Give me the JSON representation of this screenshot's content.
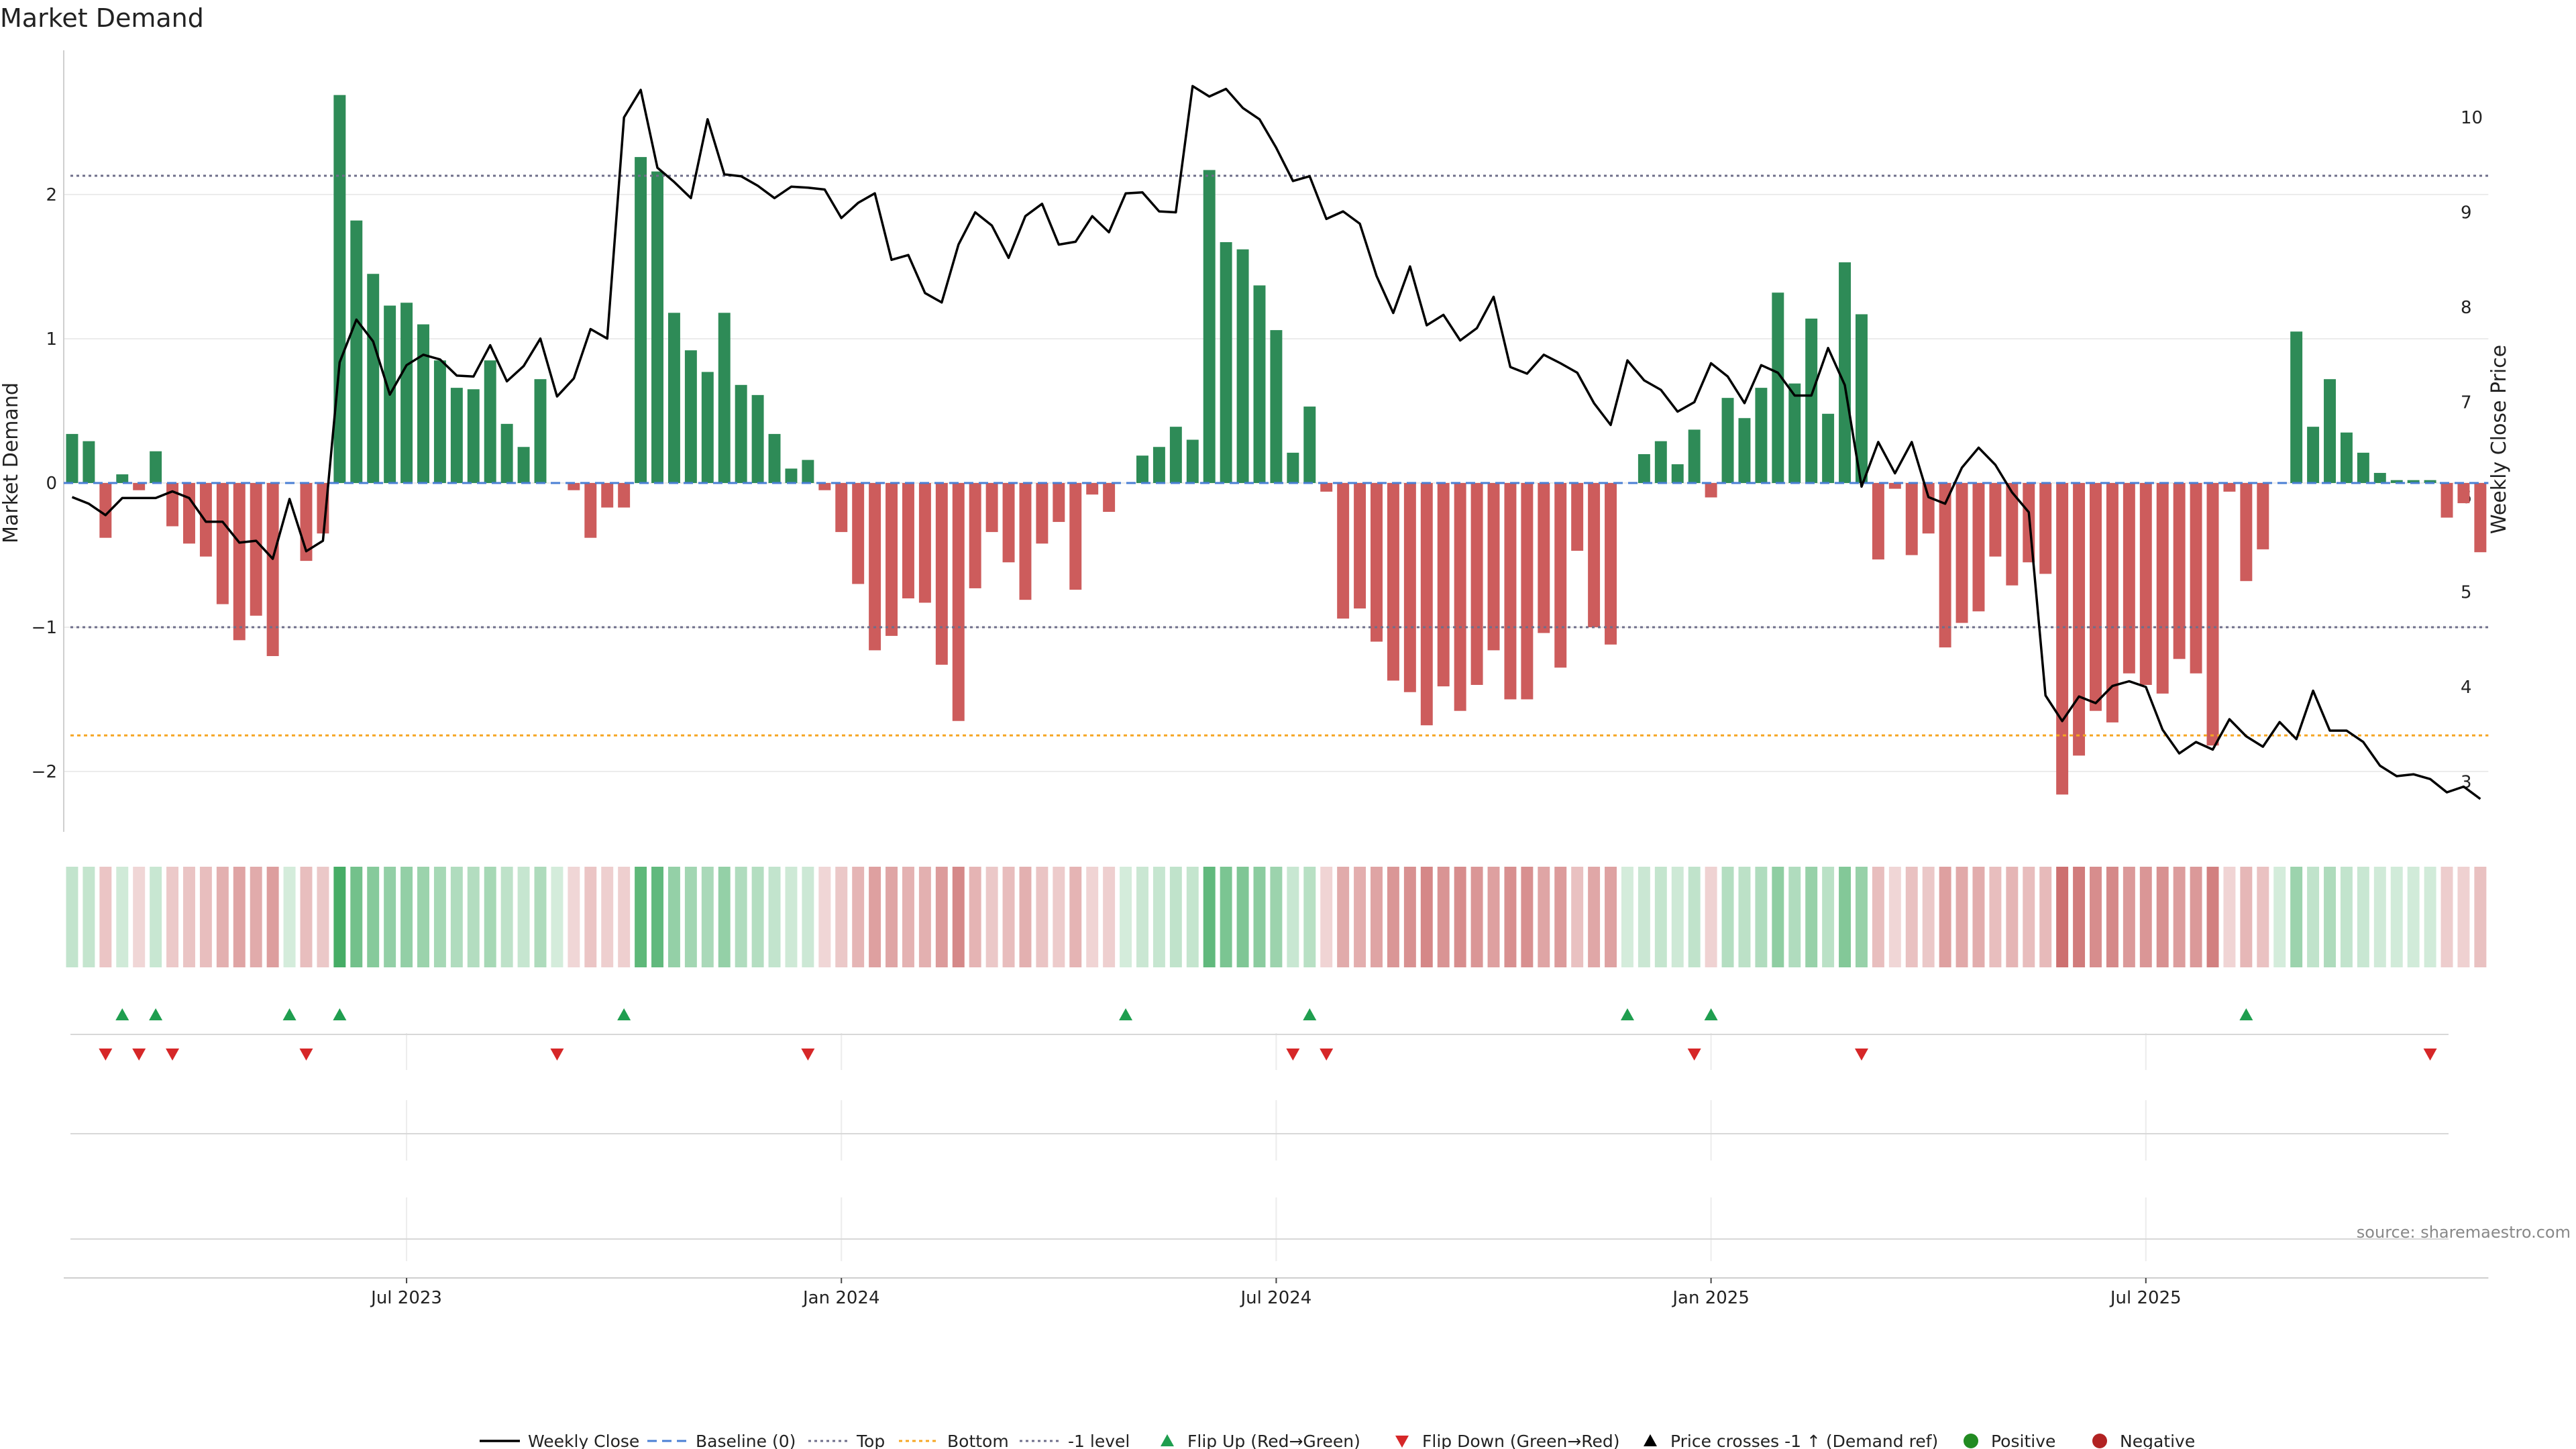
{
  "chart_data": {
    "type": "bar",
    "title": "Market Demand",
    "ylabel": "Market Demand",
    "y2label": "Weekly Close Price",
    "source": "source: sharemaestro.com",
    "ylim": [
      -2.45,
      2.95
    ],
    "y2lim": [
      2.65,
      10.55
    ],
    "yticks": [
      {
        "v": 2,
        "label": "2"
      },
      {
        "v": 1,
        "label": "1"
      },
      {
        "v": 0,
        "label": "0"
      },
      {
        "v": -1,
        "label": "−1"
      },
      {
        "v": -2,
        "label": "−2"
      }
    ],
    "y2ticks": [
      {
        "v": 10,
        "label": "10"
      },
      {
        "v": 9,
        "label": "9"
      },
      {
        "v": 8,
        "label": "8"
      },
      {
        "v": 7,
        "label": "7"
      },
      {
        "v": 6,
        "label": "6"
      },
      {
        "v": 5,
        "label": "5"
      },
      {
        "v": 4,
        "label": "4"
      },
      {
        "v": 3,
        "label": "3"
      }
    ],
    "xticks": [
      {
        "week": 20,
        "label": "Jul 2023"
      },
      {
        "week": 46,
        "label": "Jan 2024"
      },
      {
        "week": 72,
        "label": "Jul 2024"
      },
      {
        "week": 98,
        "label": "Jan 2025"
      },
      {
        "week": 124,
        "label": "Jul 2025"
      }
    ],
    "levels": {
      "top": 2.13,
      "bottom": -1.75,
      "minus_one": -1.0
    },
    "demand": [
      0.34,
      0.29,
      -0.38,
      0.06,
      -0.05,
      0.22,
      -0.3,
      -0.42,
      -0.51,
      -0.84,
      -1.09,
      -0.92,
      -1.2,
      0.0,
      -0.54,
      -0.35,
      2.69,
      1.82,
      1.45,
      1.23,
      1.25,
      1.1,
      0.85,
      0.66,
      0.65,
      0.85,
      0.41,
      0.25,
      0.72,
      0.0,
      -0.05,
      -0.38,
      -0.17,
      -0.17,
      2.26,
      2.16,
      1.18,
      0.92,
      0.77,
      1.18,
      0.68,
      0.61,
      0.34,
      0.1,
      0.16,
      -0.05,
      -0.34,
      -0.7,
      -1.16,
      -1.06,
      -0.8,
      -0.83,
      -1.26,
      -1.65,
      -0.73,
      -0.34,
      -0.55,
      -0.81,
      -0.42,
      -0.27,
      -0.74,
      -0.08,
      -0.2,
      0.0,
      0.19,
      0.25,
      0.39,
      0.3,
      2.17,
      1.67,
      1.62,
      1.37,
      1.06,
      0.21,
      0.53,
      -0.06,
      -0.94,
      -0.87,
      -1.1,
      -1.37,
      -1.45,
      -1.68,
      -1.41,
      -1.58,
      -1.4,
      -1.16,
      -1.5,
      -1.5,
      -1.04,
      -1.28,
      -0.47,
      -1.0,
      -1.12,
      0.0,
      0.2,
      0.29,
      0.13,
      0.37,
      -0.1,
      0.59,
      0.45,
      0.66,
      1.32,
      0.69,
      1.14,
      0.48,
      1.53,
      1.17,
      -0.53,
      -0.04,
      -0.5,
      -0.35,
      -1.14,
      -0.97,
      -0.89,
      -0.51,
      -0.71,
      -0.55,
      -0.63,
      -2.16,
      -1.89,
      -1.58,
      -1.66,
      -1.32,
      -1.4,
      -1.46,
      -1.22,
      -1.32,
      -1.82,
      -0.06,
      -0.68,
      -0.46,
      0.0,
      1.05,
      0.39,
      0.72,
      0.35,
      0.21,
      0.07,
      0.02,
      0.02,
      0.02,
      -0.24,
      -0.14,
      -0.48
    ],
    "price": [
      6.0,
      5.93,
      5.81,
      5.99,
      5.99,
      5.99,
      6.06,
      5.99,
      5.74,
      5.74,
      5.52,
      5.54,
      5.35,
      5.98,
      5.43,
      5.54,
      7.42,
      7.87,
      7.64,
      7.08,
      7.39,
      7.5,
      7.45,
      7.28,
      7.27,
      7.6,
      7.22,
      7.38,
      7.67,
      7.06,
      7.25,
      7.77,
      7.67,
      10.0,
      10.29,
      9.47,
      9.32,
      9.15,
      9.98,
      9.4,
      9.38,
      9.28,
      9.15,
      9.27,
      9.26,
      9.24,
      8.94,
      9.1,
      9.2,
      8.5,
      8.55,
      8.15,
      8.05,
      8.66,
      9.0,
      8.86,
      8.52,
      8.96,
      9.09,
      8.66,
      8.69,
      8.96,
      8.79,
      9.2,
      9.21,
      9.01,
      9.0,
      10.33,
      10.22,
      10.3,
      10.1,
      9.98,
      9.68,
      9.33,
      9.38,
      8.93,
      9.01,
      8.88,
      8.33,
      7.94,
      8.43,
      7.81,
      7.92,
      7.65,
      7.78,
      8.11,
      7.37,
      7.3,
      7.5,
      7.41,
      7.31,
      6.99,
      6.76,
      7.44,
      7.23,
      7.13,
      6.9,
      7.0,
      7.41,
      7.27,
      6.99,
      7.39,
      7.31,
      7.07,
      7.07,
      7.57,
      7.18,
      6.11,
      6.58,
      6.25,
      6.58,
      6.0,
      5.93,
      6.31,
      6.52,
      6.34,
      6.05,
      5.84,
      3.91,
      3.64,
      3.9,
      3.83,
      4.01,
      4.06,
      4.0,
      3.55,
      3.3,
      3.42,
      3.34,
      3.66,
      3.48,
      3.37,
      3.63,
      3.45,
      3.96,
      3.54,
      3.54,
      3.42,
      3.17,
      3.06,
      3.08,
      3.03,
      2.89,
      2.95,
      2.82
    ],
    "flip_up_weeks": [
      3,
      5,
      13,
      16,
      33,
      63,
      74,
      93,
      98,
      130
    ],
    "flip_down_weeks": [
      2,
      4,
      6,
      14,
      29,
      44,
      73,
      75,
      97,
      107,
      141
    ]
  },
  "colors": {
    "bar_positive": "#2e8b57",
    "bar_negative": "#cd5c5c",
    "price_line": "#000000",
    "top_line": "#6e6e8a",
    "bottom_line": "#f5a623",
    "minus_one_line": "#6e6e8a",
    "baseline": "#4a7fd4",
    "flip_up": "#1f9e4f",
    "flip_down": "#d62728",
    "heat_positive": "#3aa85c",
    "heat_negative": "#c04c4c"
  },
  "legend": [
    {
      "key": "line",
      "label": "Weekly Close"
    },
    {
      "key": "baseline",
      "label": "Baseline (0)"
    },
    {
      "key": "top",
      "label": "Top"
    },
    {
      "key": "bottom",
      "label": "Bottom"
    },
    {
      "key": "minus_one",
      "label": "-1 level"
    },
    {
      "key": "flip_up",
      "label": "Flip Up (Red→Green)"
    },
    {
      "key": "flip_down",
      "label": "Flip Down (Green→Red)"
    },
    {
      "key": "price_cross",
      "label": "Price crosses -1 ↑ (Demand ref)"
    },
    {
      "key": "positive",
      "label": "Positive"
    },
    {
      "key": "negative",
      "label": "Negative"
    }
  ]
}
